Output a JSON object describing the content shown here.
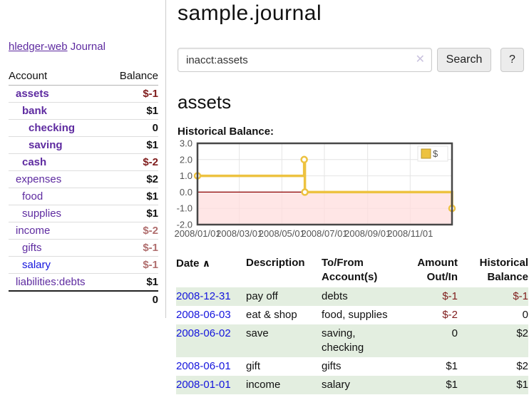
{
  "app": {
    "title": "hledger-web"
  },
  "colors": {
    "link_purple": "#5e2ba0",
    "link_blue": "#1414dd",
    "negative_strong": "#7f1c1c",
    "negative_soft": "#b06e6e",
    "row_shade_green": "#e3eee0",
    "series_gold": "#edc240",
    "negative_region_pink": "#ffdddd",
    "zero_line_red": "#8b0000"
  },
  "sidebar": {
    "nav": {
      "journal": "Journal"
    },
    "table": {
      "headers": {
        "account": "Account",
        "balance": "Balance"
      },
      "rows": [
        {
          "name": "assets",
          "depth": 1,
          "bold": true,
          "balance": "$-1",
          "balance_class": "neg"
        },
        {
          "name": "bank",
          "depth": 2,
          "bold": true,
          "balance": "$1",
          "balance_class": ""
        },
        {
          "name": "checking",
          "depth": 3,
          "bold": true,
          "balance": "0",
          "balance_class": ""
        },
        {
          "name": "saving",
          "depth": 3,
          "bold": true,
          "balance": "$1",
          "balance_class": ""
        },
        {
          "name": "cash",
          "depth": 2,
          "bold": true,
          "balance": "$-2",
          "balance_class": "neg"
        },
        {
          "name": "expenses",
          "depth": 1,
          "bold": false,
          "balance": "$2",
          "balance_class": ""
        },
        {
          "name": "food",
          "depth": 2,
          "bold": false,
          "balance": "$1",
          "balance_class": ""
        },
        {
          "name": "supplies",
          "depth": 2,
          "bold": false,
          "balance": "$1",
          "balance_class": ""
        },
        {
          "name": "income",
          "depth": 1,
          "bold": false,
          "balance": "$-2",
          "balance_class": "neg-soft"
        },
        {
          "name": "gifts",
          "depth": 2,
          "bold": false,
          "balance": "$-1",
          "balance_class": "neg-soft"
        },
        {
          "name": "salary",
          "depth": 2,
          "bold": false,
          "balance": "$-1",
          "balance_class": "neg-soft",
          "link": "blue"
        },
        {
          "name": "liabilities:debts",
          "depth": 1,
          "bold": false,
          "balance": "$1",
          "balance_class": ""
        }
      ],
      "total": "0"
    }
  },
  "main": {
    "title": "sample.journal",
    "search": {
      "value": "inacct:assets",
      "clear_icon": "✕",
      "button_label": "Search",
      "help_label": "?"
    },
    "heading": "assets",
    "chart_label": "Historical Balance:"
  },
  "chart_data": {
    "type": "line",
    "step": true,
    "legend": "$",
    "legend_position": "top-right",
    "grid": true,
    "ylim": [
      -2,
      3
    ],
    "y_ticks": [
      {
        "value": 3,
        "label": "3.0"
      },
      {
        "value": 2,
        "label": "2.0"
      },
      {
        "value": 1,
        "label": "1.0"
      },
      {
        "value": 0,
        "label": "0.0"
      },
      {
        "value": -1,
        "label": "-1.0"
      },
      {
        "value": -2,
        "label": "-2.0"
      }
    ],
    "x_range": [
      "2008-01-01",
      "2008-12-31"
    ],
    "x_ticks": [
      {
        "date": "2008-01-01",
        "label": "2008/01/01"
      },
      {
        "date": "2008-03-01",
        "label": "2008/03/01"
      },
      {
        "date": "2008-05-01",
        "label": "2008/05/01"
      },
      {
        "date": "2008-07-01",
        "label": "2008/07/01"
      },
      {
        "date": "2008-09-01",
        "label": "2008/09/01"
      },
      {
        "date": "2008-11-01",
        "label": "2008/11/01"
      }
    ],
    "series": [
      {
        "name": "$",
        "color": "#edc240",
        "points": [
          {
            "date": "2008-01-01",
            "value": 1
          },
          {
            "date": "2008-06-02",
            "value": 2
          },
          {
            "date": "2008-06-03",
            "value": 0
          },
          {
            "date": "2008-12-31",
            "value": -1
          }
        ]
      }
    ],
    "negative_fill": "#ffdddd",
    "zero_line_color": "#8b0000"
  },
  "register": {
    "headers": {
      "date": "Date",
      "sort_icon": "∧",
      "description": "Description",
      "accounts": "To/From Account(s)",
      "amount": "Amount Out/In",
      "balance": "Historical Balance"
    },
    "rows": [
      {
        "date": "2008-12-31",
        "description": "pay off",
        "accounts": "debts",
        "amount": "$-1",
        "amount_class": "neg",
        "balance": "$-1",
        "balance_class": "neg",
        "shaded": true
      },
      {
        "date": "2008-06-03",
        "description": "eat & shop",
        "accounts": "food, supplies",
        "amount": "$-2",
        "amount_class": "neg",
        "balance": "0",
        "balance_class": "",
        "shaded": false
      },
      {
        "date": "2008-06-02",
        "description": "save",
        "accounts": "saving, checking",
        "amount": "0",
        "amount_class": "",
        "balance": "$2",
        "balance_class": "",
        "shaded": true
      },
      {
        "date": "2008-06-01",
        "description": "gift",
        "accounts": "gifts",
        "amount": "$1",
        "amount_class": "",
        "balance": "$2",
        "balance_class": "",
        "shaded": false
      },
      {
        "date": "2008-01-01",
        "description": "income",
        "accounts": "salary",
        "amount": "$1",
        "amount_class": "",
        "balance": "$1",
        "balance_class": "",
        "shaded": true
      }
    ]
  }
}
